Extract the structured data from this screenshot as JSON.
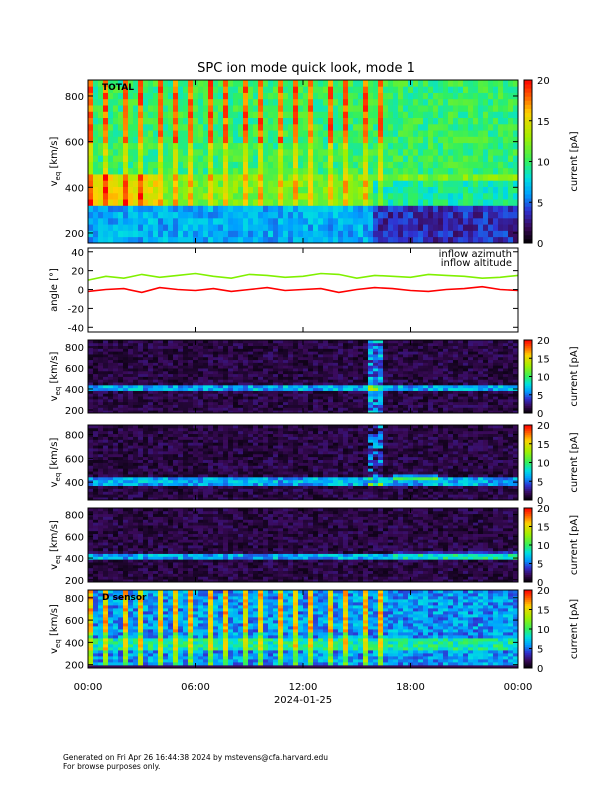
{
  "title": "SPC ion mode quick look, mode 1",
  "footer": [
    "Generated on Fri Apr 26 16:44:38 2024 by mstevens@cfa.harvard.edu",
    "For browse purposes only."
  ],
  "chart_data": [
    {
      "type": "heatmap",
      "annotation": "TOTAL",
      "ylabel": [
        "v",
        "eq",
        " [km/s]"
      ],
      "ylim": [
        156,
        870
      ],
      "yticks": [
        200,
        400,
        600,
        800
      ],
      "clim": [
        0,
        20
      ],
      "cticks": [
        0,
        5,
        10,
        15,
        20
      ],
      "clabel": "current [pA]"
    },
    {
      "type": "line",
      "ylabel": "angle [°]",
      "ylim": [
        -45,
        44
      ],
      "yticks": [
        -40,
        -20,
        0,
        20,
        40
      ],
      "x": [
        0,
        1,
        2,
        3,
        4,
        5,
        6,
        7,
        8,
        9,
        10,
        11,
        12,
        13,
        14,
        15,
        16,
        17,
        18,
        19,
        20,
        21,
        22,
        23,
        24
      ],
      "series": [
        {
          "name": "inflow azimuth",
          "color": "#ff0000",
          "values": [
            -2,
            0,
            1,
            -3,
            2,
            0,
            -1,
            1,
            -2,
            0,
            2,
            -1,
            0,
            1,
            -3,
            0,
            2,
            1,
            -1,
            -2,
            0,
            1,
            3,
            0,
            -1
          ]
        },
        {
          "name": "inflow altitude",
          "color": "#80f000",
          "values": [
            10,
            14,
            12,
            16,
            13,
            15,
            17,
            14,
            12,
            16,
            15,
            13,
            14,
            17,
            16,
            12,
            15,
            14,
            13,
            16,
            15,
            14,
            12,
            13,
            15
          ]
        }
      ]
    },
    {
      "type": "heatmap",
      "ylabel": [
        "v",
        "eq",
        " [km/s]"
      ],
      "ylim": [
        171,
        867
      ],
      "yticks": [
        200,
        400,
        600,
        800
      ],
      "clim": [
        0,
        20
      ],
      "cticks": [
        0,
        5,
        10,
        15,
        20
      ],
      "clabel": "current [pA]"
    },
    {
      "type": "heatmap",
      "ylabel": [
        "v",
        "eq",
        " [km/s]"
      ],
      "ylim": [
        250,
        880
      ],
      "yticks": [
        400,
        600,
        800
      ],
      "clim": [
        0,
        20
      ],
      "cticks": [
        0,
        5,
        10,
        15,
        20
      ],
      "clabel": "current [pA]"
    },
    {
      "type": "heatmap",
      "ylabel": [
        "v",
        "eq",
        " [km/s]"
      ],
      "ylim": [
        180,
        860
      ],
      "yticks": [
        200,
        400,
        600,
        800
      ],
      "clim": [
        0,
        20
      ],
      "cticks": [
        0,
        5,
        10,
        15,
        20
      ],
      "clabel": "current [pA]"
    },
    {
      "type": "heatmap",
      "annotation": "D sensor",
      "ylabel": [
        "v",
        "eq",
        " [km/s]"
      ],
      "ylim": [
        170,
        870
      ],
      "yticks": [
        200,
        400,
        600,
        800
      ],
      "clim": [
        0,
        20
      ],
      "cticks": [
        0,
        5,
        10,
        15,
        20
      ],
      "clabel": "current [pA]",
      "xlim": [
        0,
        24
      ],
      "xticks": [
        {
          "value": 0,
          "label": "00:00"
        },
        {
          "value": 6,
          "label": "06:00"
        },
        {
          "value": 12,
          "label": "12:00"
        },
        {
          "value": 18,
          "label": "18:00"
        },
        {
          "value": 24,
          "label": "00:00"
        }
      ],
      "xlabel": "2024-01-25"
    }
  ]
}
